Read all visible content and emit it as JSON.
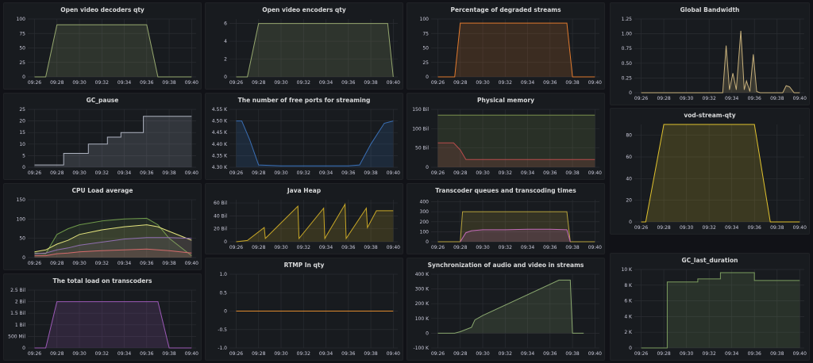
{
  "x_labels": [
    "09:26",
    "09:28",
    "09:30",
    "09:32",
    "09:34",
    "09:36",
    "09:38",
    "09:40"
  ],
  "panels": [
    {
      "id": "open-video-decoders",
      "title": "Open video decoders qty",
      "color": "#96a86f",
      "yticks": [
        0,
        25,
        50,
        75,
        100
      ],
      "yticklabels": [
        "0",
        "25",
        "50",
        "75",
        "100"
      ],
      "ylim": [
        0,
        100
      ],
      "chart_data": {
        "type": "area",
        "x": [
          "09:26",
          "09:27",
          "09:28",
          "09:36",
          "09:37",
          "09:38",
          "09:40"
        ],
        "series": [
          {
            "values": [
              0,
              0,
              90,
              90,
              0,
              0,
              0
            ]
          }
        ]
      }
    },
    {
      "id": "open-video-encoders",
      "title": "Open video encoders qty",
      "color": "#96a86f",
      "yticks": [
        0,
        2,
        4,
        6
      ],
      "yticklabels": [
        "0",
        "2",
        "4",
        "6"
      ],
      "ylim": [
        0,
        6.5
      ],
      "chart_data": {
        "type": "area",
        "x": [
          "09:26",
          "09:27",
          "09:28",
          "09:39.5",
          "09:40"
        ],
        "series": [
          {
            "values": [
              0,
              0,
              6,
              6,
              0
            ]
          }
        ]
      }
    },
    {
      "id": "degraded-streams",
      "title": "Percentage of degraded streams",
      "color": "#e07a2e",
      "yticks": [
        0,
        25,
        50,
        75,
        100
      ],
      "yticklabels": [
        "0",
        "25",
        "50",
        "75",
        "100"
      ],
      "ylim": [
        0,
        100
      ],
      "chart_data": {
        "type": "area",
        "x": [
          "09:26",
          "09:27.5",
          "09:28",
          "09:37.5",
          "09:38",
          "09:40"
        ],
        "series": [
          {
            "values": [
              0,
              0,
              93,
              93,
              0,
              0
            ]
          }
        ]
      }
    },
    {
      "id": "global-bandwidth",
      "title": "Global Bandwidth",
      "color": "#c7b07b",
      "yticks": [
        0,
        0.25,
        0.5,
        0.75,
        1.0,
        1.25
      ],
      "yticklabels": [
        "0",
        "0.25",
        "0.50",
        "0.75",
        "1.00",
        "1.25"
      ],
      "ylim": [
        0,
        1.25
      ],
      "chart_data": {
        "type": "area",
        "x": [
          "09:26",
          "09:33.2",
          "09:33.5",
          "09:33.8",
          "09:34.1",
          "09:34.4",
          "09:34.8",
          "09:35.1",
          "09:35.3",
          "09:35.6",
          "09:35.9",
          "09:36.2",
          "09:36.5",
          "09:38.5",
          "09:38.8",
          "09:39.1",
          "09:39.5",
          "09:40"
        ],
        "series": [
          {
            "values": [
              0,
              0,
              0.8,
              0.05,
              0.33,
              0.05,
              1.05,
              0.05,
              0.2,
              0.02,
              0.65,
              0.02,
              0,
              0,
              0.12,
              0.1,
              0,
              0
            ]
          }
        ]
      }
    },
    {
      "id": "gc-pause",
      "title": "GC_pause",
      "color": "#aeb3c0",
      "yticks": [
        0,
        5,
        10,
        15,
        20,
        25
      ],
      "yticklabels": [
        "0",
        "5",
        "10",
        "15",
        "20",
        "25"
      ],
      "ylim": [
        0,
        25
      ],
      "chart_data": {
        "type": "area",
        "x": [
          "09:26",
          "09:28.6",
          "09:28.6",
          "09:30.8",
          "09:30.8",
          "09:32.5",
          "09:32.5",
          "09:33.7",
          "09:33.7",
          "09:35.7",
          "09:35.7",
          "09:40"
        ],
        "series": [
          {
            "values": [
              1,
              1,
              6,
              6,
              10,
              10,
              13,
              13,
              15,
              15,
              22,
              22
            ]
          }
        ]
      }
    },
    {
      "id": "free-ports",
      "title": "The number of free ports for streaming",
      "color": "#3a6fb5",
      "yticks": [
        4300,
        4350,
        4400,
        4450,
        4500,
        4550
      ],
      "yticklabels": [
        "4.30 K",
        "4.35 K",
        "4.40 K",
        "4.45 K",
        "4.50 K",
        "4.55 K"
      ],
      "ylim": [
        4300,
        4550
      ],
      "chart_data": {
        "type": "area",
        "x": [
          "09:26",
          "09:26.5",
          "09:27.2",
          "09:28",
          "09:30",
          "09:36",
          "09:37",
          "09:38",
          "09:39.2",
          "09:40"
        ],
        "series": [
          {
            "values": [
              4500,
              4500,
              4420,
              4310,
              4306,
              4306,
              4310,
              4400,
              4490,
              4500
            ]
          }
        ]
      }
    },
    {
      "id": "physical-memory",
      "title": "Physical memory",
      "color": "#7a8f4d",
      "yticks": [
        0,
        50000,
        100000,
        150000
      ],
      "yticklabels": [
        "0",
        "50 Bil",
        "100 Bil",
        "150 Bil"
      ],
      "ylim": [
        0,
        150000
      ],
      "chart_data": {
        "type": "area",
        "x": [
          "09:26",
          "09:40"
        ],
        "series": [
          {
            "values": [
              135000,
              135000
            ]
          },
          {
            "color": "#b84c4c",
            "x": [
              "09:26",
              "09:27.4",
              "09:28",
              "09:28.5",
              "09:40"
            ],
            "values": [
              63000,
              63000,
              45000,
              20000,
              20000
            ]
          }
        ]
      }
    },
    {
      "id": "vod-stream-qty",
      "title": "vod-stream-qty",
      "color": "#e0c22e",
      "yticks": [
        0,
        20,
        40,
        60,
        80
      ],
      "yticklabels": [
        "0",
        "20",
        "40",
        "60",
        "80"
      ],
      "ylim": [
        0,
        90
      ],
      "chart_data": {
        "type": "area",
        "x": [
          "09:26",
          "09:26.4",
          "09:28",
          "09:36",
          "09:37.4",
          "09:38",
          "09:40"
        ],
        "series": [
          {
            "values": [
              0,
              0,
              90,
              90,
              0,
              0,
              0
            ]
          }
        ]
      }
    },
    {
      "id": "cpu-load",
      "title": "CPU Load average",
      "color": "#6f9a4a",
      "yticks": [
        0,
        50,
        100,
        150
      ],
      "yticklabels": [
        "0",
        "50",
        "100",
        "150"
      ],
      "ylim": [
        0,
        150
      ],
      "chart_data": {
        "type": "line",
        "x": [
          "09:26",
          "09:27",
          "09:28",
          "09:29",
          "09:30",
          "09:32",
          "09:34",
          "09:36",
          "09:37",
          "09:38",
          "09:40"
        ],
        "series": [
          {
            "color": "#6f9a4a",
            "values": [
              12,
              10,
              60,
              75,
              85,
              95,
              100,
              102,
              85,
              50,
              5
            ]
          },
          {
            "color": "#e3e37d",
            "values": [
              15,
              20,
              35,
              45,
              60,
              72,
              80,
              85,
              80,
              68,
              45
            ]
          },
          {
            "color": "#8f6fb0",
            "values": [
              10,
              12,
              20,
              25,
              32,
              40,
              48,
              52,
              52,
              52,
              50
            ]
          },
          {
            "color": "#d46b6b",
            "values": [
              5,
              5,
              10,
              12,
              15,
              18,
              20,
              22,
              20,
              18,
              12
            ]
          }
        ]
      }
    },
    {
      "id": "java-heap",
      "title": "Java Heap",
      "color": "#c9a827",
      "yticks": [
        0,
        20000,
        40000,
        60000
      ],
      "yticklabels": [
        "0",
        "20 Bil",
        "40 Bil",
        "60 Bil"
      ],
      "ylim": [
        0,
        65000
      ],
      "chart_data": {
        "type": "area",
        "x": [
          "09:26",
          "09:27",
          "09:28.5",
          "09:28.6",
          "09:31.5",
          "09:31.6",
          "09:33.8",
          "09:33.9",
          "09:35.7",
          "09:35.8",
          "09:37.6",
          "09:37.7",
          "09:38.5",
          "09:40"
        ],
        "series": [
          {
            "values": [
              0,
              2000,
              22000,
              5000,
              55000,
              5000,
              52000,
              5000,
              58000,
              5000,
              52000,
              22000,
              48000,
              48000
            ]
          }
        ]
      }
    },
    {
      "id": "transcoder-queues",
      "title": "Transcoder queues and transcoding times",
      "color": "#b7a33c",
      "yticks": [
        0,
        100,
        200,
        300,
        400
      ],
      "yticklabels": [
        "0",
        "100",
        "200",
        "300",
        "400"
      ],
      "ylim": [
        0,
        420
      ],
      "chart_data": {
        "type": "area",
        "x": [
          "09:26",
          "09:28",
          "09:28.2",
          "09:37.5",
          "09:37.8",
          "09:40"
        ],
        "series": [
          {
            "values": [
              0,
              0,
              300,
              300,
              0,
              0
            ]
          },
          {
            "color": "#c26bb7",
            "x": [
              "09:28",
              "09:28.5",
              "09:29",
              "09:30",
              "09:32",
              "09:34",
              "09:36",
              "09:37.5",
              "09:37.8"
            ],
            "values": [
              0,
              90,
              110,
              120,
              120,
              125,
              125,
              120,
              0
            ]
          }
        ]
      }
    },
    {
      "id": "transcoder-load",
      "title": "The total load on transcoders",
      "color": "#9b59b6",
      "yticks": [
        0,
        500,
        1000,
        1500,
        2000,
        2500
      ],
      "yticklabels": [
        "0",
        "500 Mil",
        "1 Bil",
        "1.5 Bil",
        "2 Bil",
        "2.5 Bil"
      ],
      "ylim": [
        0,
        2500
      ],
      "chart_data": {
        "type": "area",
        "x": [
          "09:26",
          "09:27",
          "09:28",
          "09:37",
          "09:38",
          "09:40"
        ],
        "series": [
          {
            "values": [
              0,
              0,
              2000,
              2000,
              0,
              0
            ]
          }
        ]
      }
    },
    {
      "id": "rtmp-in-qty",
      "title": "RTMP In qty",
      "color": "#e08a2e",
      "yticks": [
        -1,
        -0.5,
        0,
        0.5,
        1
      ],
      "yticklabels": [
        "-1.0",
        "-0.5",
        "0",
        "0.5",
        "1.0"
      ],
      "ylim": [
        -1,
        1
      ],
      "chart_data": {
        "type": "line",
        "x": [
          "09:26",
          "09:40"
        ],
        "series": [
          {
            "values": [
              0,
              0
            ]
          }
        ]
      }
    },
    {
      "id": "av-sync",
      "title": "Synchronization of audio and video in streams",
      "color": "#8aa86f",
      "yticks": [
        -100000,
        0,
        100000,
        200000,
        300000,
        400000
      ],
      "yticklabels": [
        "-100 K",
        "0",
        "100 K",
        "200 K",
        "300 K",
        "400 K"
      ],
      "ylim": [
        -100000,
        400000
      ],
      "chart_data": {
        "type": "area",
        "x": [
          "09:26",
          "09:27.5",
          "09:28",
          "09:29",
          "09:29.3",
          "09:30",
          "09:36.8",
          "09:37.8",
          "09:38",
          "09:39"
        ],
        "series": [
          {
            "values": [
              0,
              0,
              10000,
              40000,
              90000,
              120000,
              360000,
              360000,
              0,
              0
            ]
          }
        ]
      }
    },
    {
      "id": "gc-last-duration",
      "title": "GC_last_duration",
      "color": "#7c9d5f",
      "yticks": [
        0,
        2000,
        4000,
        6000,
        8000,
        10000
      ],
      "yticklabels": [
        "0",
        "2 K",
        "4 K",
        "6 K",
        "8 K",
        "10 K"
      ],
      "ylim": [
        0,
        10000
      ],
      "chart_data": {
        "type": "area",
        "x": [
          "09:26",
          "09:28.3",
          "09:28.3",
          "09:31",
          "09:31",
          "09:33",
          "09:33",
          "09:36",
          "09:36",
          "09:40"
        ],
        "series": [
          {
            "values": [
              0,
              0,
              8400,
              8400,
              8800,
              8800,
              9600,
              9600,
              8600,
              8600
            ]
          }
        ]
      }
    }
  ]
}
